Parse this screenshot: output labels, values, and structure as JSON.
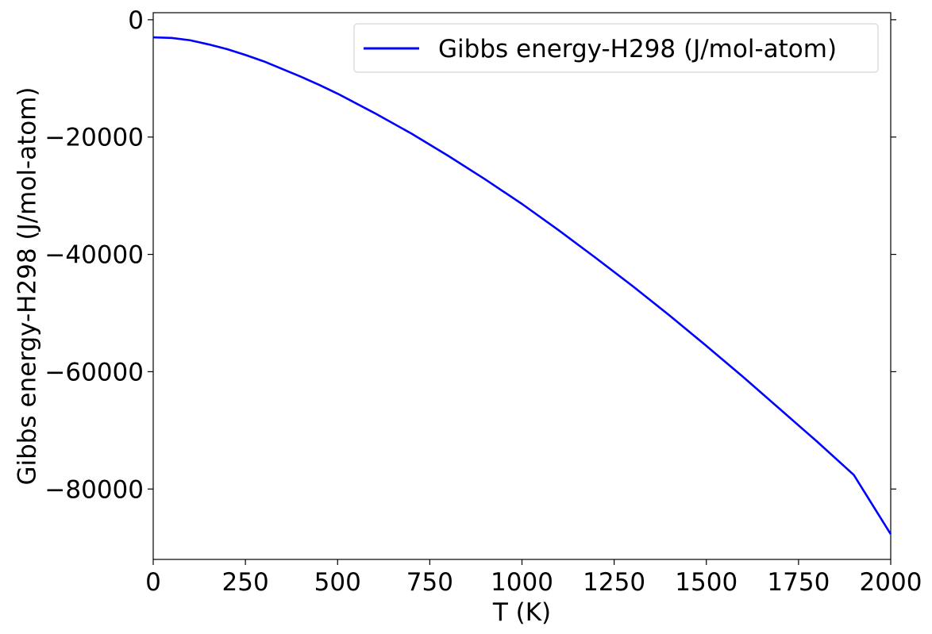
{
  "chart_data": {
    "type": "line",
    "title": "",
    "xlabel": "T (K)",
    "ylabel": "Gibbs energy-H298 (J/mol-atom)",
    "xlim": [
      0,
      2000
    ],
    "ylim": [
      -92000,
      1200
    ],
    "xticks": [
      0,
      250,
      500,
      750,
      1000,
      1250,
      1500,
      1750,
      2000
    ],
    "xtick_labels": [
      "0",
      "250",
      "500",
      "750",
      "1000",
      "1250",
      "1500",
      "1750",
      "2000"
    ],
    "yticks": [
      0,
      -20000,
      -40000,
      -60000,
      -80000
    ],
    "ytick_labels": [
      "0",
      "−20000",
      "−40000",
      "−60000",
      "−80000"
    ],
    "grid": false,
    "legend_position": "top-right",
    "series": [
      {
        "name": "Gibbs energy-H298 (J/mol-atom)",
        "color": "#0000ff",
        "x": [
          0,
          50,
          100,
          150,
          200,
          250,
          300,
          350,
          400,
          450,
          500,
          600,
          700,
          800,
          900,
          1000,
          1100,
          1200,
          1300,
          1400,
          1500,
          1600,
          1700,
          1800,
          1900,
          2000
        ],
        "y": [
          -3000,
          -3100,
          -3500,
          -4200,
          -5000,
          -6000,
          -7100,
          -8400,
          -9700,
          -11100,
          -12600,
          -15900,
          -19400,
          -23200,
          -27200,
          -31400,
          -35900,
          -40600,
          -45400,
          -50400,
          -55600,
          -60900,
          -66400,
          -71900,
          -77600,
          -87700
        ]
      }
    ]
  }
}
